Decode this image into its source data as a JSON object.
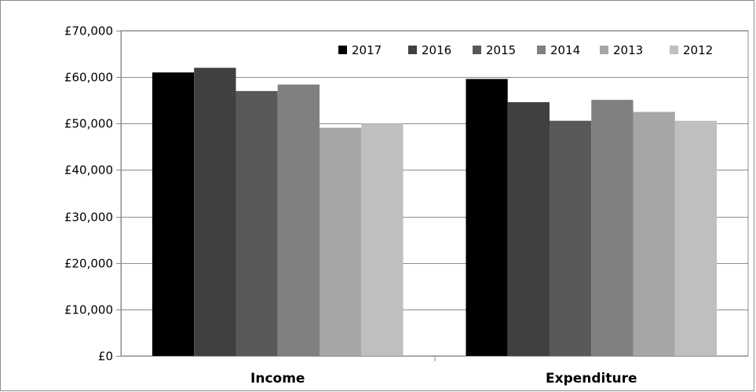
{
  "chart_data": {
    "type": "bar",
    "title": "",
    "xlabel": "",
    "ylabel": "",
    "categories": [
      "Income",
      "Expenditure"
    ],
    "ylim": [
      0,
      70000
    ],
    "yticks": [
      0,
      10000,
      20000,
      30000,
      40000,
      50000,
      60000,
      70000
    ],
    "ytick_labels": [
      "£0",
      "£10,000",
      "£20,000",
      "£30,000",
      "£40,000",
      "£50,000",
      "£60,000",
      "£70,000"
    ],
    "grid": true,
    "legend_position": "top-right",
    "series": [
      {
        "name": "2017",
        "color": "#000000",
        "values": [
          61000,
          59600
        ]
      },
      {
        "name": "2016",
        "color": "#404040",
        "values": [
          62000,
          54600
        ]
      },
      {
        "name": "2015",
        "color": "#595959",
        "values": [
          57000,
          50600
        ]
      },
      {
        "name": "2014",
        "color": "#808080",
        "values": [
          58400,
          55100
        ]
      },
      {
        "name": "2013",
        "color": "#a6a6a6",
        "values": [
          49100,
          52500
        ]
      },
      {
        "name": "2012",
        "color": "#bfbfbf",
        "values": [
          50000,
          50600
        ]
      }
    ]
  }
}
